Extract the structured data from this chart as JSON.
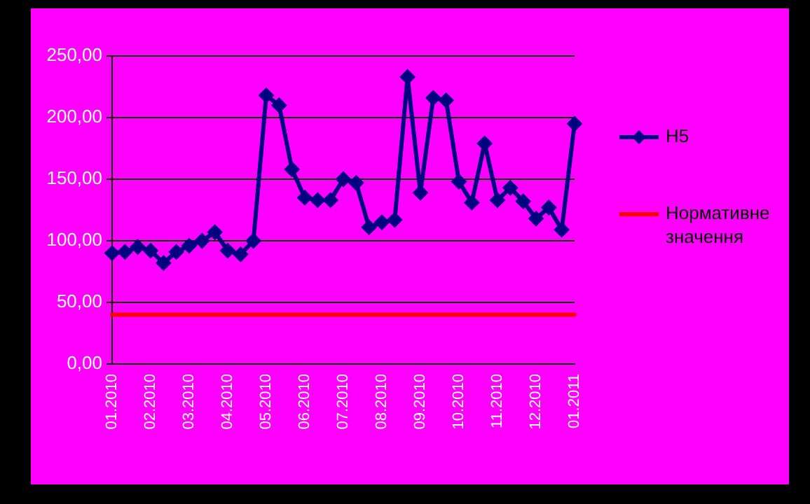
{
  "chart_data": {
    "type": "line",
    "categories": [
      "01.2010",
      null,
      null,
      "02.2010",
      null,
      null,
      "03.2010",
      null,
      null,
      "04.2010",
      null,
      null,
      "05.2010",
      null,
      null,
      "06.2010",
      null,
      null,
      "07.2010",
      null,
      null,
      "08.2010",
      null,
      null,
      "09.2010",
      null,
      null,
      "10.2010",
      null,
      null,
      "11.2010",
      null,
      null,
      "12.2010",
      null,
      null,
      "01.2011"
    ],
    "series": [
      {
        "name": "Н5",
        "color": "#000080",
        "values": [
          90,
          91,
          95,
          92,
          82,
          91,
          96,
          100,
          107,
          92,
          89,
          100,
          218,
          210,
          158,
          135,
          133,
          133,
          150,
          147,
          111,
          115,
          117,
          233,
          139,
          216,
          214,
          148,
          131,
          179,
          133,
          143,
          132,
          118,
          127,
          109,
          195
        ]
      },
      {
        "name": "Нормативне значення",
        "color": "#ff0000",
        "marker": "none",
        "values": [
          40,
          40,
          40,
          40,
          40,
          40,
          40,
          40,
          40,
          40,
          40,
          40,
          40,
          40,
          40,
          40,
          40,
          40,
          40,
          40,
          40,
          40,
          40,
          40,
          40,
          40,
          40,
          40,
          40,
          40,
          40,
          40,
          40,
          40,
          40,
          40,
          40
        ]
      }
    ],
    "ylim": [
      0,
      250
    ],
    "yticks": [
      {
        "value": 0,
        "label": "0,00"
      },
      {
        "value": 50,
        "label": "50,00"
      },
      {
        "value": 100,
        "label": "100,00"
      },
      {
        "value": 150,
        "label": "150,00"
      },
      {
        "value": 200,
        "label": "200,00"
      },
      {
        "value": 250,
        "label": "250,00"
      }
    ],
    "grid": "y",
    "legend": "right",
    "marker": "diamond",
    "line_style": "solid"
  }
}
